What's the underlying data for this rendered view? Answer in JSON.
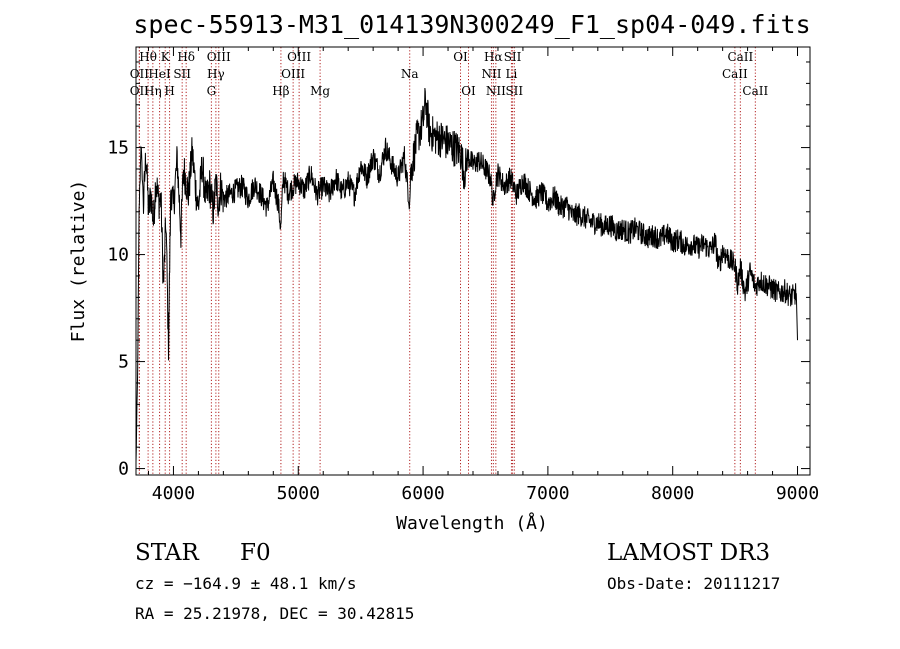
{
  "chart_data": {
    "type": "line",
    "title": "spec-55913-M31_014139N300249_F1_sp04-049.fits",
    "xlabel": "Wavelength (Å)",
    "ylabel": "Flux (relative)",
    "xlim": [
      3700,
      9100
    ],
    "ylim": [
      -0.3,
      19.7
    ],
    "xticks": [
      4000,
      5000,
      6000,
      7000,
      8000,
      9000
    ],
    "yticks": [
      0,
      5,
      10,
      15
    ],
    "series": [
      {
        "name": "flux",
        "x": [
          3700,
          3712,
          3725,
          3740,
          3760,
          3780,
          3800,
          3820,
          3840,
          3860,
          3880,
          3900,
          3920,
          3940,
          3960,
          3980,
          4000,
          4030,
          4060,
          4080,
          4100,
          4120,
          4150,
          4180,
          4200,
          4230,
          4260,
          4290,
          4320,
          4340,
          4360,
          4380,
          4400,
          4450,
          4500,
          4550,
          4600,
          4650,
          4700,
          4750,
          4800,
          4840,
          4860,
          4880,
          4920,
          4960,
          5000,
          5050,
          5100,
          5150,
          5200,
          5250,
          5300,
          5350,
          5400,
          5450,
          5500,
          5550,
          5600,
          5650,
          5700,
          5750,
          5800,
          5850,
          5880,
          5893,
          5900,
          5950,
          6000,
          6020,
          6050,
          6080,
          6100,
          6150,
          6200,
          6250,
          6300,
          6330,
          6360,
          6400,
          6450,
          6500,
          6540,
          6563,
          6580,
          6600,
          6650,
          6700,
          6750,
          6800,
          6850,
          6900,
          6950,
          7000,
          7050,
          7100,
          7150,
          7200,
          7250,
          7300,
          7350,
          7400,
          7450,
          7500,
          7550,
          7600,
          7650,
          7700,
          7750,
          7800,
          7850,
          7900,
          7950,
          8000,
          8050,
          8100,
          8150,
          8200,
          8250,
          8300,
          8340,
          8370,
          8400,
          8450,
          8498,
          8520,
          8542,
          8580,
          8620,
          8662,
          8700,
          8750,
          8800,
          8850,
          8900,
          8950,
          8990,
          9000
        ],
        "values": [
          0.2,
          4.0,
          12.0,
          15.2,
          12.3,
          14.8,
          12.0,
          12.8,
          11.5,
          13.6,
          12.5,
          12.6,
          8.5,
          11.6,
          5.8,
          13.2,
          12.2,
          14.5,
          11.0,
          14.0,
          13.5,
          12.8,
          14.8,
          13.0,
          12.2,
          14.2,
          12.5,
          13.2,
          12.0,
          13.4,
          12.4,
          13.2,
          12.6,
          12.8,
          13.0,
          13.2,
          12.6,
          13.3,
          12.8,
          12.2,
          13.4,
          12.4,
          11.2,
          13.6,
          12.9,
          13.2,
          13.4,
          13.0,
          13.8,
          12.8,
          13.2,
          12.8,
          13.6,
          12.9,
          13.4,
          12.8,
          14.2,
          13.6,
          14.6,
          13.8,
          15.0,
          14.2,
          13.6,
          14.6,
          13.0,
          12.4,
          13.8,
          15.4,
          16.2,
          17.2,
          15.8,
          15.6,
          15.5,
          15.4,
          15.2,
          15.0,
          14.8,
          13.8,
          14.6,
          14.2,
          14.4,
          14.0,
          13.6,
          12.4,
          13.4,
          13.8,
          13.2,
          13.6,
          12.8,
          13.5,
          13.0,
          12.6,
          12.9,
          12.4,
          12.7,
          12.2,
          12.3,
          11.8,
          11.9,
          11.7,
          11.5,
          11.5,
          11.3,
          11.4,
          11.1,
          11.2,
          11.0,
          11.2,
          11.0,
          10.8,
          10.9,
          10.7,
          11.0,
          10.6,
          10.7,
          10.4,
          10.5,
          10.3,
          10.5,
          10.2,
          10.6,
          9.4,
          10.2,
          9.8,
          9.5,
          8.6,
          9.4,
          8.2,
          9.2,
          8.5,
          8.8,
          8.6,
          8.4,
          8.2,
          8.3,
          8.0,
          8.2,
          6.0
        ],
        "color": "#000000"
      }
    ],
    "spectral_lines": [
      {
        "label": "Hθ",
        "x": 3797,
        "row": 1
      },
      {
        "label": "K",
        "x": 3934,
        "row": 1
      },
      {
        "label": "Hδ",
        "x": 4102,
        "row": 1
      },
      {
        "label": "OIII",
        "x": 4363,
        "row": 1
      },
      {
        "label": "OIII",
        "x": 5007,
        "row": 1
      },
      {
        "label": "OI",
        "x": 6300,
        "row": 1
      },
      {
        "label": "Hα",
        "x": 6563,
        "row": 1
      },
      {
        "label": "SII",
        "x": 6717,
        "row": 1
      },
      {
        "label": "CaII",
        "x": 8542,
        "row": 1
      },
      {
        "label": "OII",
        "x": 3727,
        "row": 2
      },
      {
        "label": "HeI",
        "x": 3889,
        "row": 2
      },
      {
        "label": "SII",
        "x": 4070,
        "row": 2
      },
      {
        "label": "Hγ",
        "x": 4340,
        "row": 2
      },
      {
        "label": "OIII",
        "x": 4959,
        "row": 2
      },
      {
        "label": "Na",
        "x": 5893,
        "row": 2
      },
      {
        "label": "NII",
        "x": 6548,
        "row": 2
      },
      {
        "label": "Li",
        "x": 6708,
        "row": 2
      },
      {
        "label": "CaII",
        "x": 8498,
        "row": 2
      },
      {
        "label": "OII",
        "x": 3727,
        "row": 3
      },
      {
        "label": "Hη",
        "x": 3835,
        "row": 3
      },
      {
        "label": "H",
        "x": 3969,
        "row": 3
      },
      {
        "label": "G",
        "x": 4304,
        "row": 3
      },
      {
        "label": "Hβ",
        "x": 4861,
        "row": 3
      },
      {
        "label": "Mg",
        "x": 5175,
        "row": 3
      },
      {
        "label": "OI",
        "x": 6364,
        "row": 3
      },
      {
        "label": "NII",
        "x": 6583,
        "row": 3
      },
      {
        "label": "SII",
        "x": 6731,
        "row": 3
      },
      {
        "label": "CaII",
        "x": 8662,
        "row": 3
      }
    ],
    "grid": false,
    "legend": "none"
  },
  "info": {
    "class": "STAR",
    "subclass": "F0",
    "survey": "LAMOST DR3",
    "redshift": "cz = −164.9 ± 48.1 km/s",
    "obs_date": "Obs-Date: 20111217",
    "coords": "RA =  25.21978, DEC =  30.42815"
  }
}
